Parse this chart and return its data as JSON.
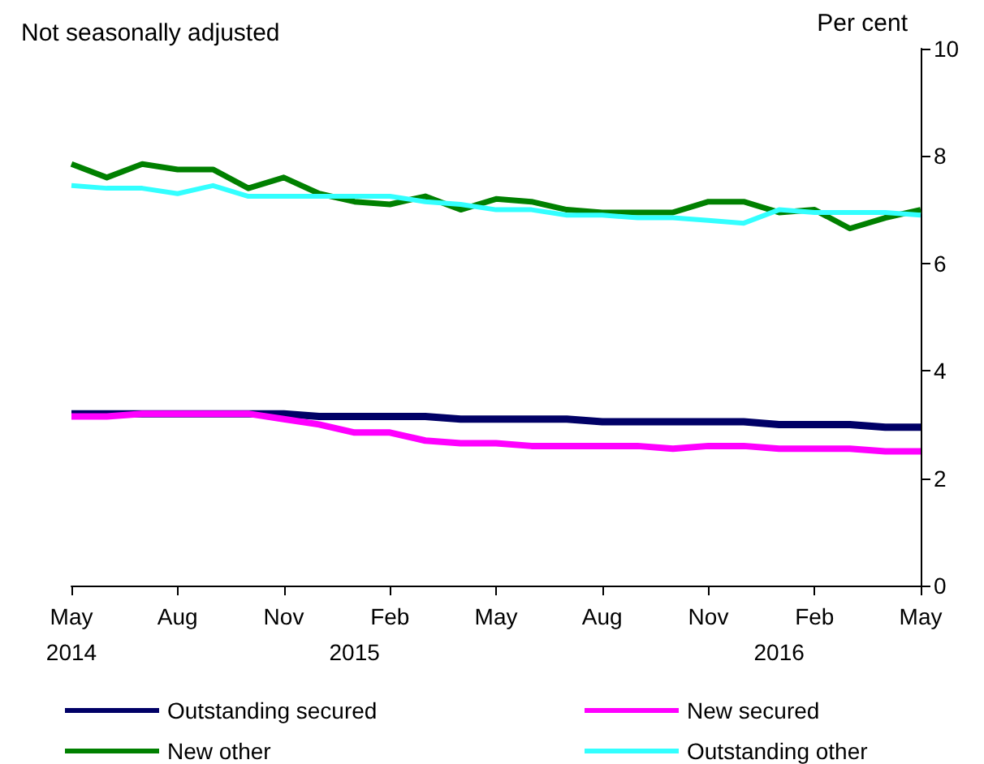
{
  "chart_data": {
    "type": "line",
    "title": "Not seasonally adjusted",
    "ylabel": "Per cent",
    "categories": [
      "May\n2014",
      null,
      null,
      "Aug",
      null,
      null,
      "Nov",
      null,
      "\n2015",
      "Feb",
      null,
      null,
      "May",
      null,
      null,
      "Aug",
      null,
      null,
      "Nov",
      null,
      "\n2016",
      "Feb",
      null,
      null,
      "May"
    ],
    "series": [
      {
        "name": "Outstanding secured",
        "color": "#000066",
        "values": [
          3.2,
          3.2,
          3.2,
          3.2,
          3.2,
          3.2,
          3.2,
          3.15,
          3.15,
          3.15,
          3.15,
          3.1,
          3.1,
          3.1,
          3.1,
          3.05,
          3.05,
          3.05,
          3.05,
          3.05,
          3.0,
          3.0,
          3.0,
          2.95,
          2.95
        ]
      },
      {
        "name": "New secured",
        "color": "#ff00ff",
        "values": [
          3.15,
          3.15,
          3.2,
          3.2,
          3.2,
          3.2,
          3.1,
          3.0,
          2.85,
          2.85,
          2.7,
          2.65,
          2.65,
          2.6,
          2.6,
          2.6,
          2.6,
          2.55,
          2.6,
          2.6,
          2.55,
          2.55,
          2.55,
          2.5,
          2.5
        ]
      },
      {
        "name": "New other",
        "color": "#008000",
        "values": [
          7.85,
          7.6,
          7.85,
          7.75,
          7.75,
          7.4,
          7.6,
          7.3,
          7.15,
          7.1,
          7.25,
          7.0,
          7.2,
          7.15,
          7.0,
          6.95,
          6.95,
          6.95,
          7.15,
          7.15,
          6.95,
          7.0,
          6.65,
          6.85,
          7.0
        ]
      },
      {
        "name": "Outstanding other",
        "color": "#33ffff",
        "values": [
          7.45,
          7.4,
          7.4,
          7.3,
          7.45,
          7.25,
          7.25,
          7.25,
          7.25,
          7.25,
          7.15,
          7.1,
          7.0,
          7.0,
          6.9,
          6.9,
          6.85,
          6.85,
          6.8,
          6.75,
          7.0,
          6.95,
          6.95,
          6.95,
          6.9
        ]
      }
    ],
    "ylim": [
      0,
      10
    ],
    "yticks": [
      0,
      2,
      4,
      6,
      8,
      10
    ],
    "grid": false,
    "legend": "bottom",
    "marker": "none",
    "line_style": "solid"
  }
}
